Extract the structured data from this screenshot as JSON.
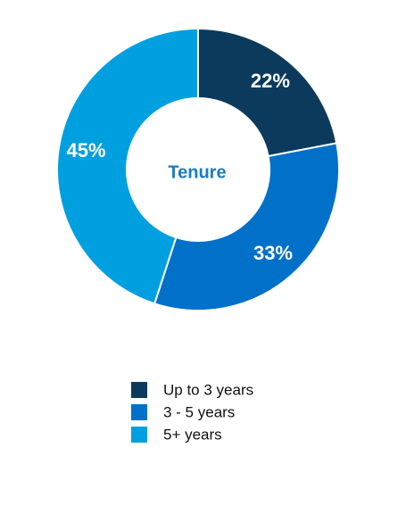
{
  "chart_data": {
    "type": "donut",
    "title": "Tenure",
    "categories": [
      "Up to 3 years",
      "3 - 5 years",
      "5+ years"
    ],
    "values": [
      22,
      33,
      45
    ],
    "value_labels": [
      "22%",
      "33%",
      "45%"
    ],
    "colors": [
      "#0b3a5d",
      "#0070c9",
      "#00a0e0"
    ],
    "legend": "bottom"
  }
}
